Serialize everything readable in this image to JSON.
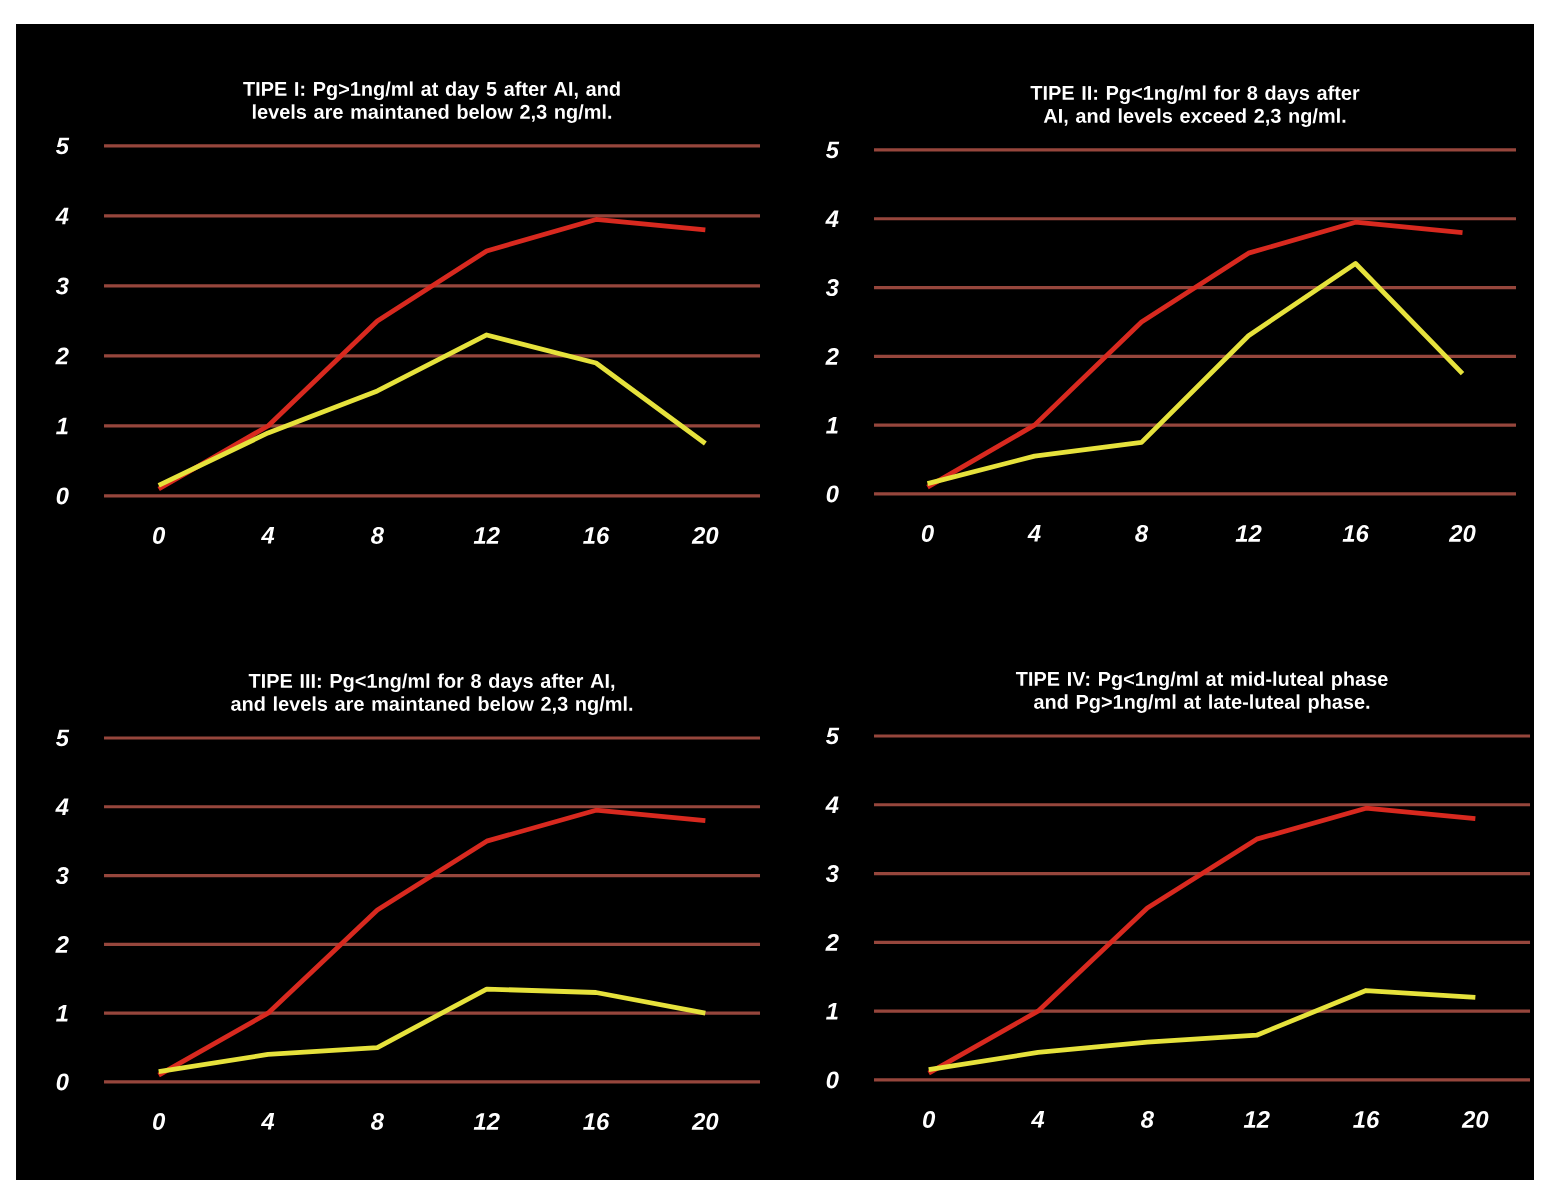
{
  "chart_data": [
    {
      "type": "line",
      "title": "TIPE I: Pg>1ng/ml at day 5 after AI, and levels are maintaned below 2,3 ng/ml.",
      "x": [
        0,
        4,
        8,
        12,
        16,
        20
      ],
      "xlim": [
        -2,
        22
      ],
      "xticks": [
        0,
        4,
        8,
        12,
        16,
        20
      ],
      "ylim": [
        0,
        5
      ],
      "yticks": [
        0,
        1,
        2,
        3,
        4,
        5
      ],
      "grid": "y",
      "marker": "none",
      "series": [
        {
          "color": "#d8291f",
          "values": [
            0.1,
            1.0,
            2.5,
            3.5,
            3.95,
            3.8
          ]
        },
        {
          "color": "#e6e23c",
          "values": [
            0.15,
            0.9,
            1.5,
            2.3,
            1.9,
            0.75
          ]
        }
      ]
    },
    {
      "type": "line",
      "title": "TIPE II: Pg<1ng/ml for 8 days after AI, and levels exceed 2,3 ng/ml.",
      "x": [
        0,
        4,
        8,
        12,
        16,
        20
      ],
      "xlim": [
        -2,
        22
      ],
      "xticks": [
        0,
        4,
        8,
        12,
        16,
        20
      ],
      "ylim": [
        0,
        5
      ],
      "yticks": [
        0,
        1,
        2,
        3,
        4,
        5
      ],
      "grid": "y",
      "marker": "none",
      "series": [
        {
          "color": "#d8291f",
          "values": [
            0.1,
            1.0,
            2.5,
            3.5,
            3.95,
            3.8
          ]
        },
        {
          "color": "#e6e23c",
          "values": [
            0.15,
            0.55,
            0.75,
            2.3,
            3.35,
            1.75
          ]
        }
      ]
    },
    {
      "type": "line",
      "title": "TIPE III: Pg<1ng/ml for 8 days after AI, and levels are maintaned below 2,3 ng/ml.",
      "x": [
        0,
        4,
        8,
        12,
        16,
        20
      ],
      "xlim": [
        -2,
        22
      ],
      "xticks": [
        0,
        4,
        8,
        12,
        16,
        20
      ],
      "ylim": [
        0,
        5
      ],
      "yticks": [
        0,
        1,
        2,
        3,
        4,
        5
      ],
      "grid": "y",
      "marker": "none",
      "series": [
        {
          "color": "#d8291f",
          "values": [
            0.1,
            1.0,
            2.5,
            3.5,
            3.95,
            3.8
          ]
        },
        {
          "color": "#e6e23c",
          "values": [
            0.15,
            0.4,
            0.5,
            1.35,
            1.3,
            1.0
          ]
        }
      ]
    },
    {
      "type": "line",
      "title": "TIPE IV: Pg<1ng/ml at mid-luteal phase and Pg>1ng/ml at late-luteal phase.",
      "x": [
        0,
        4,
        8,
        12,
        16,
        20
      ],
      "xlim": [
        -2,
        22
      ],
      "xticks": [
        0,
        4,
        8,
        12,
        16,
        20
      ],
      "ylim": [
        0,
        5
      ],
      "yticks": [
        0,
        1,
        2,
        3,
        4,
        5
      ],
      "grid": "y",
      "marker": "none",
      "series": [
        {
          "color": "#d8291f",
          "values": [
            0.1,
            1.0,
            2.5,
            3.5,
            3.95,
            3.8
          ]
        },
        {
          "color": "#e6e23c",
          "values": [
            0.15,
            0.4,
            0.55,
            0.65,
            1.3,
            1.2
          ]
        }
      ]
    }
  ]
}
